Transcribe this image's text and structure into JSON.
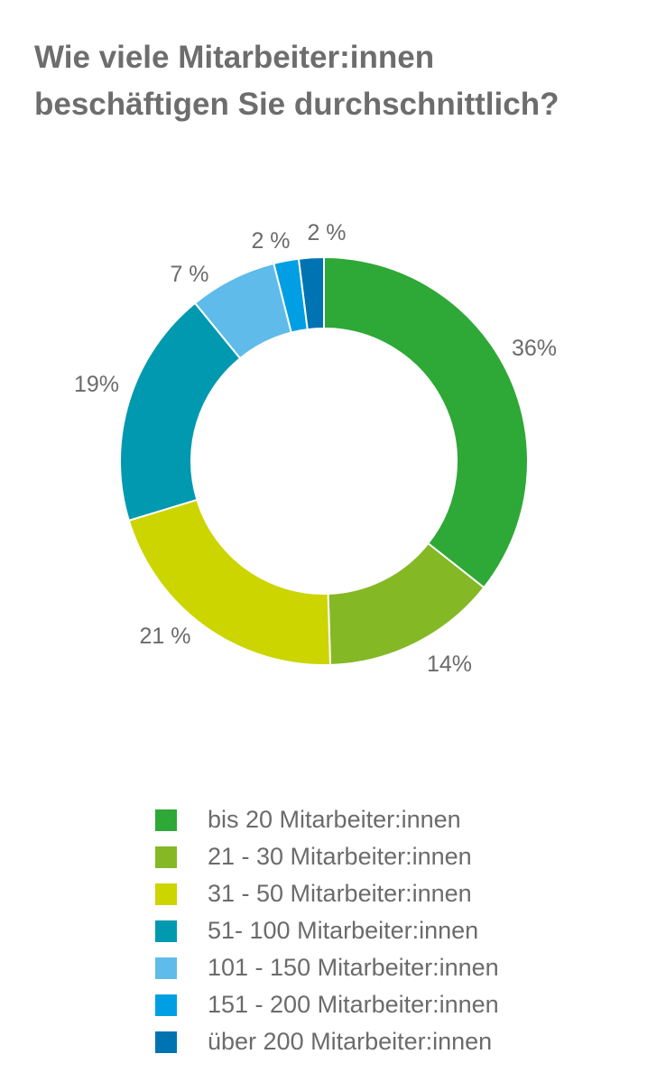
{
  "title_lines": [
    "Wie viele Mitarbeiter:innen",
    "beschäftigen Sie durchschnittlich?"
  ],
  "chart_data": {
    "type": "pie",
    "title": "Wie viele Mitarbeiter:innen beschäftigen Sie durchschnittlich?",
    "categories": [
      "bis 20 Mitarbeiter:innen",
      "21 - 30 Mitarbeiter:innen",
      "31 - 50 Mitarbeiter:innen",
      "51- 100 Mitarbeiter:innen",
      "101 - 150 Mitarbeiter:innen",
      "151 - 200 Mitarbeiter:innen",
      "über 200 Mitarbeiter:innen"
    ],
    "values": [
      36,
      14,
      21,
      19,
      7,
      2,
      2
    ],
    "data_labels": [
      "36%",
      "14%",
      "21 %",
      "19%",
      "7 %",
      "2 %",
      "2 %"
    ],
    "colors": [
      "#2ea836",
      "#84b825",
      "#ccd500",
      "#0099b0",
      "#5fbbea",
      "#009fe3",
      "#0073b2"
    ],
    "donut": true,
    "legend_position": "bottom"
  }
}
